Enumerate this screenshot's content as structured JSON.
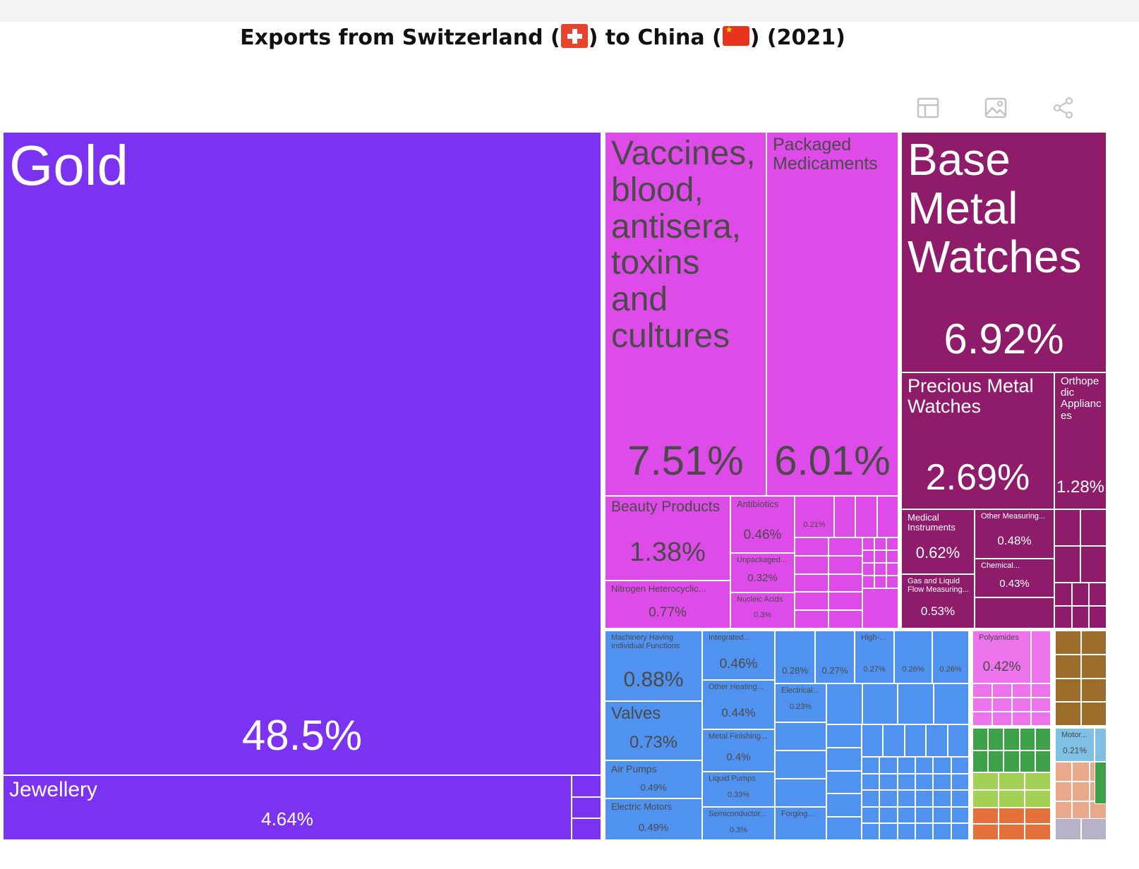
{
  "title": {
    "prefix": "Exports from Switzerland (",
    "middle": ") to China (",
    "suffix": ") (2021)"
  },
  "toolbar": [
    {
      "name": "table-view-icon",
      "label": ""
    },
    {
      "name": "download-image-icon",
      "label": ""
    },
    {
      "name": "share-icon",
      "label": ""
    }
  ],
  "colors": {
    "precious_metals": "#7b33f1",
    "chemicals": "#df4be8",
    "instruments": "#8e1c6a",
    "machines": "#5092f0",
    "plastics": "#ee74ee",
    "stone_glass": "#9b6d2b",
    "vegetable": "#3fa04a",
    "foodstuffs": "#a4d155",
    "metals": "#e4703c",
    "transport": "#7ec1e4"
  },
  "chart_data": {
    "type": "treemap",
    "title": "Exports from Switzerland to China (2021)",
    "unit": "% of exports",
    "items": [
      {
        "label": "Gold",
        "value": 48.5,
        "group": "precious_metals"
      },
      {
        "label": "Jewellery",
        "value": 4.64,
        "group": "precious_metals"
      },
      {
        "label": "Vaccines, blood, antisera, toxins and cultures",
        "value": 7.51,
        "group": "chemicals"
      },
      {
        "label": "Packaged Medicaments",
        "value": 6.01,
        "group": "chemicals"
      },
      {
        "label": "Beauty Products",
        "value": 1.38,
        "group": "chemicals"
      },
      {
        "label": "Nitrogen Heterocyclic...",
        "value": 0.77,
        "group": "chemicals"
      },
      {
        "label": "Antibiotics",
        "value": 0.46,
        "group": "chemicals"
      },
      {
        "label": "Unpackaged...",
        "value": 0.32,
        "group": "chemicals"
      },
      {
        "label": "Nucleic Acids",
        "value": 0.3,
        "group": "chemicals"
      },
      {
        "label": "",
        "value": 0.21,
        "group": "chemicals"
      },
      {
        "label": "Base Metal Watches",
        "value": 6.92,
        "group": "instruments"
      },
      {
        "label": "Precious Metal Watches",
        "value": 2.69,
        "group": "instruments"
      },
      {
        "label": "Orthopedic Appliances",
        "value": 1.28,
        "group": "instruments"
      },
      {
        "label": "Medical Instruments",
        "value": 0.62,
        "group": "instruments"
      },
      {
        "label": "Other Measuring...",
        "value": 0.48,
        "group": "instruments"
      },
      {
        "label": "Gas and Liquid Flow Measuring...",
        "value": 0.53,
        "group": "instruments"
      },
      {
        "label": "Chemical...",
        "value": 0.43,
        "group": "instruments"
      },
      {
        "label": "Machinery Having Individual Functions",
        "value": 0.88,
        "group": "machines"
      },
      {
        "label": "Valves",
        "value": 0.73,
        "group": "machines"
      },
      {
        "label": "Air Pumps",
        "value": 0.49,
        "group": "machines"
      },
      {
        "label": "Electric Motors",
        "value": 0.49,
        "group": "machines"
      },
      {
        "label": "Integrated...",
        "value": 0.46,
        "group": "machines"
      },
      {
        "label": "Other Heating...",
        "value": 0.44,
        "group": "machines"
      },
      {
        "label": "Metal Finishing...",
        "value": 0.4,
        "group": "machines"
      },
      {
        "label": "Liquid Pumps",
        "value": 0.33,
        "group": "machines"
      },
      {
        "label": "Semiconductor...",
        "value": 0.3,
        "group": "machines"
      },
      {
        "label": "",
        "value": 0.28,
        "group": "machines"
      },
      {
        "label": "",
        "value": 0.27,
        "group": "machines"
      },
      {
        "label": "High-...",
        "value": 0.27,
        "group": "machines"
      },
      {
        "label": "",
        "value": 0.26,
        "group": "machines"
      },
      {
        "label": "",
        "value": 0.26,
        "group": "machines"
      },
      {
        "label": "Electrical...",
        "value": 0.23,
        "group": "machines"
      },
      {
        "label": "Forging...",
        "value": null,
        "group": "machines"
      },
      {
        "label": "Polyamides",
        "value": 0.42,
        "group": "plastics"
      },
      {
        "label": "Motor...",
        "value": 0.21,
        "group": "transport"
      }
    ]
  }
}
